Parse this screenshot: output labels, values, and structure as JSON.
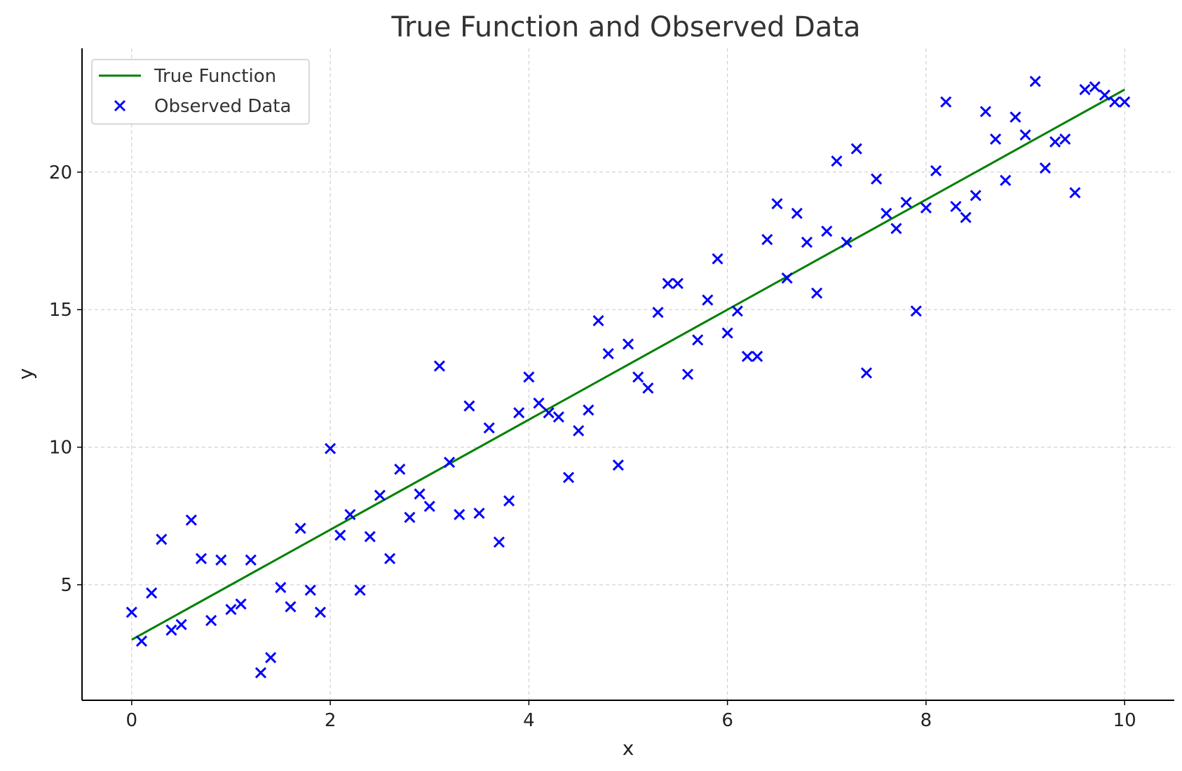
{
  "chart_data": {
    "type": "scatter",
    "title": "True Function and Observed Data",
    "xlabel": "x",
    "ylabel": "y",
    "xlim": [
      -0.5,
      10.5
    ],
    "ylim": [
      0.8,
      24.5
    ],
    "xticks": [
      0,
      2,
      4,
      6,
      8,
      10
    ],
    "yticks": [
      5,
      10,
      15,
      20
    ],
    "grid": true,
    "legend": {
      "position": "top-left"
    },
    "colors": {
      "true_function": "#008000",
      "observed_data": "#0000ff"
    },
    "series": [
      {
        "name": "True Function",
        "kind": "line",
        "x": [
          0,
          10
        ],
        "y": [
          3.0,
          23.0
        ]
      },
      {
        "name": "Observed Data",
        "kind": "scatter",
        "marker": "x",
        "x": [
          0.0,
          0.1,
          0.2,
          0.3,
          0.4,
          0.5,
          0.6,
          0.7,
          0.8,
          0.9,
          1.0,
          1.1,
          1.2,
          1.3,
          1.4,
          1.5,
          1.6,
          1.7,
          1.8,
          1.9,
          2.0,
          2.1,
          2.2,
          2.3,
          2.4,
          2.5,
          2.6,
          2.7,
          2.8,
          2.9,
          3.0,
          3.1,
          3.2,
          3.3,
          3.4,
          3.5,
          3.6,
          3.7,
          3.8,
          3.9,
          4.0,
          4.1,
          4.2,
          4.3,
          4.4,
          4.5,
          4.6,
          4.7,
          4.8,
          4.9,
          5.0,
          5.1,
          5.2,
          5.3,
          5.4,
          5.5,
          5.6,
          5.7,
          5.8,
          5.9,
          6.0,
          6.1,
          6.2,
          6.3,
          6.4,
          6.5,
          6.6,
          6.7,
          6.8,
          6.9,
          7.0,
          7.1,
          7.2,
          7.3,
          7.4,
          7.5,
          7.6,
          7.7,
          7.8,
          7.9,
          8.0,
          8.1,
          8.2,
          8.3,
          8.4,
          8.5,
          8.6,
          8.7,
          8.8,
          8.9,
          9.0,
          9.1,
          9.2,
          9.3,
          9.4,
          9.5,
          9.6,
          9.7,
          9.8,
          9.9,
          10.0
        ],
        "y": [
          4.0,
          2.95,
          4.7,
          6.65,
          3.35,
          3.55,
          7.35,
          5.95,
          3.7,
          5.9,
          4.1,
          4.3,
          5.9,
          1.8,
          2.35,
          4.9,
          4.2,
          7.05,
          4.8,
          4.0,
          9.95,
          6.8,
          7.55,
          4.8,
          6.75,
          8.25,
          5.95,
          9.2,
          7.45,
          8.3,
          7.85,
          12.95,
          9.45,
          7.55,
          11.5,
          7.6,
          10.7,
          6.55,
          8.05,
          11.25,
          12.55,
          11.6,
          11.25,
          11.1,
          8.9,
          10.6,
          11.35,
          14.6,
          13.4,
          9.35,
          13.75,
          12.55,
          12.15,
          14.9,
          15.95,
          15.95,
          12.65,
          13.9,
          15.35,
          16.85,
          14.15,
          14.95,
          13.3,
          13.3,
          17.55,
          18.85,
          16.15,
          18.5,
          17.45,
          15.6,
          17.85,
          20.4,
          17.45,
          20.85,
          12.7,
          19.75,
          18.5,
          17.95,
          18.9,
          14.95,
          18.7,
          20.05,
          22.55,
          18.75,
          18.35,
          19.15,
          22.2,
          21.2,
          19.7,
          22.0,
          21.35,
          23.3,
          20.15,
          21.1,
          21.2,
          19.25,
          23.0,
          23.1,
          22.8,
          22.55,
          22.55
        ]
      }
    ]
  }
}
